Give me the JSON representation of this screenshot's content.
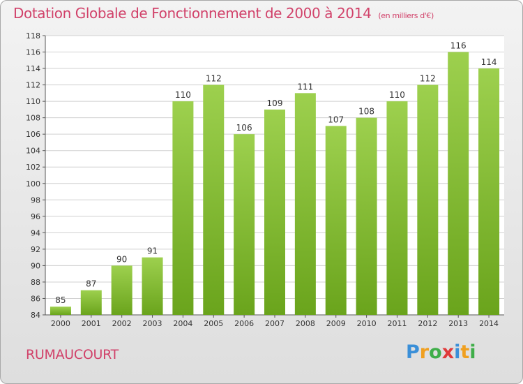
{
  "title": "Dotation Globale de Fonctionnement de 2000 à 2014",
  "subtitle": "(en milliers d'€)",
  "place": "RUMAUCOURT",
  "logo": {
    "letters": [
      "P",
      "r",
      "o",
      "x",
      "i",
      "t",
      "i"
    ],
    "colors": [
      "#3a8fd8",
      "#f0a020",
      "#3fae49",
      "#e03a3a",
      "#3a8fd8",
      "#f0a020",
      "#3fae49"
    ]
  },
  "colors": {
    "bar_light": "#9dd04e",
    "bar_dark": "#6aa41c",
    "title": "#d1426a",
    "grid": "#d0d0d0"
  },
  "chart_data": {
    "type": "bar",
    "categories": [
      "2000",
      "2001",
      "2002",
      "2003",
      "2004",
      "2005",
      "2006",
      "2007",
      "2008",
      "2009",
      "2010",
      "2011",
      "2012",
      "2013",
      "2014"
    ],
    "values": [
      85,
      87,
      90,
      91,
      110,
      112,
      106,
      109,
      111,
      107,
      108,
      110,
      112,
      116,
      114
    ],
    "data_labels": [
      "85",
      "87",
      "90",
      "91",
      "110",
      "112",
      "106",
      "109",
      "111",
      "107",
      "108",
      "110",
      "112",
      "116",
      "114"
    ],
    "yticks": [
      "84",
      "86",
      "88",
      "90",
      "92",
      "94",
      "96",
      "98",
      "100",
      "102",
      "104",
      "106",
      "108",
      "110",
      "112",
      "114",
      "116",
      "118"
    ],
    "ylim": [
      84,
      118
    ],
    "grid": true
  }
}
